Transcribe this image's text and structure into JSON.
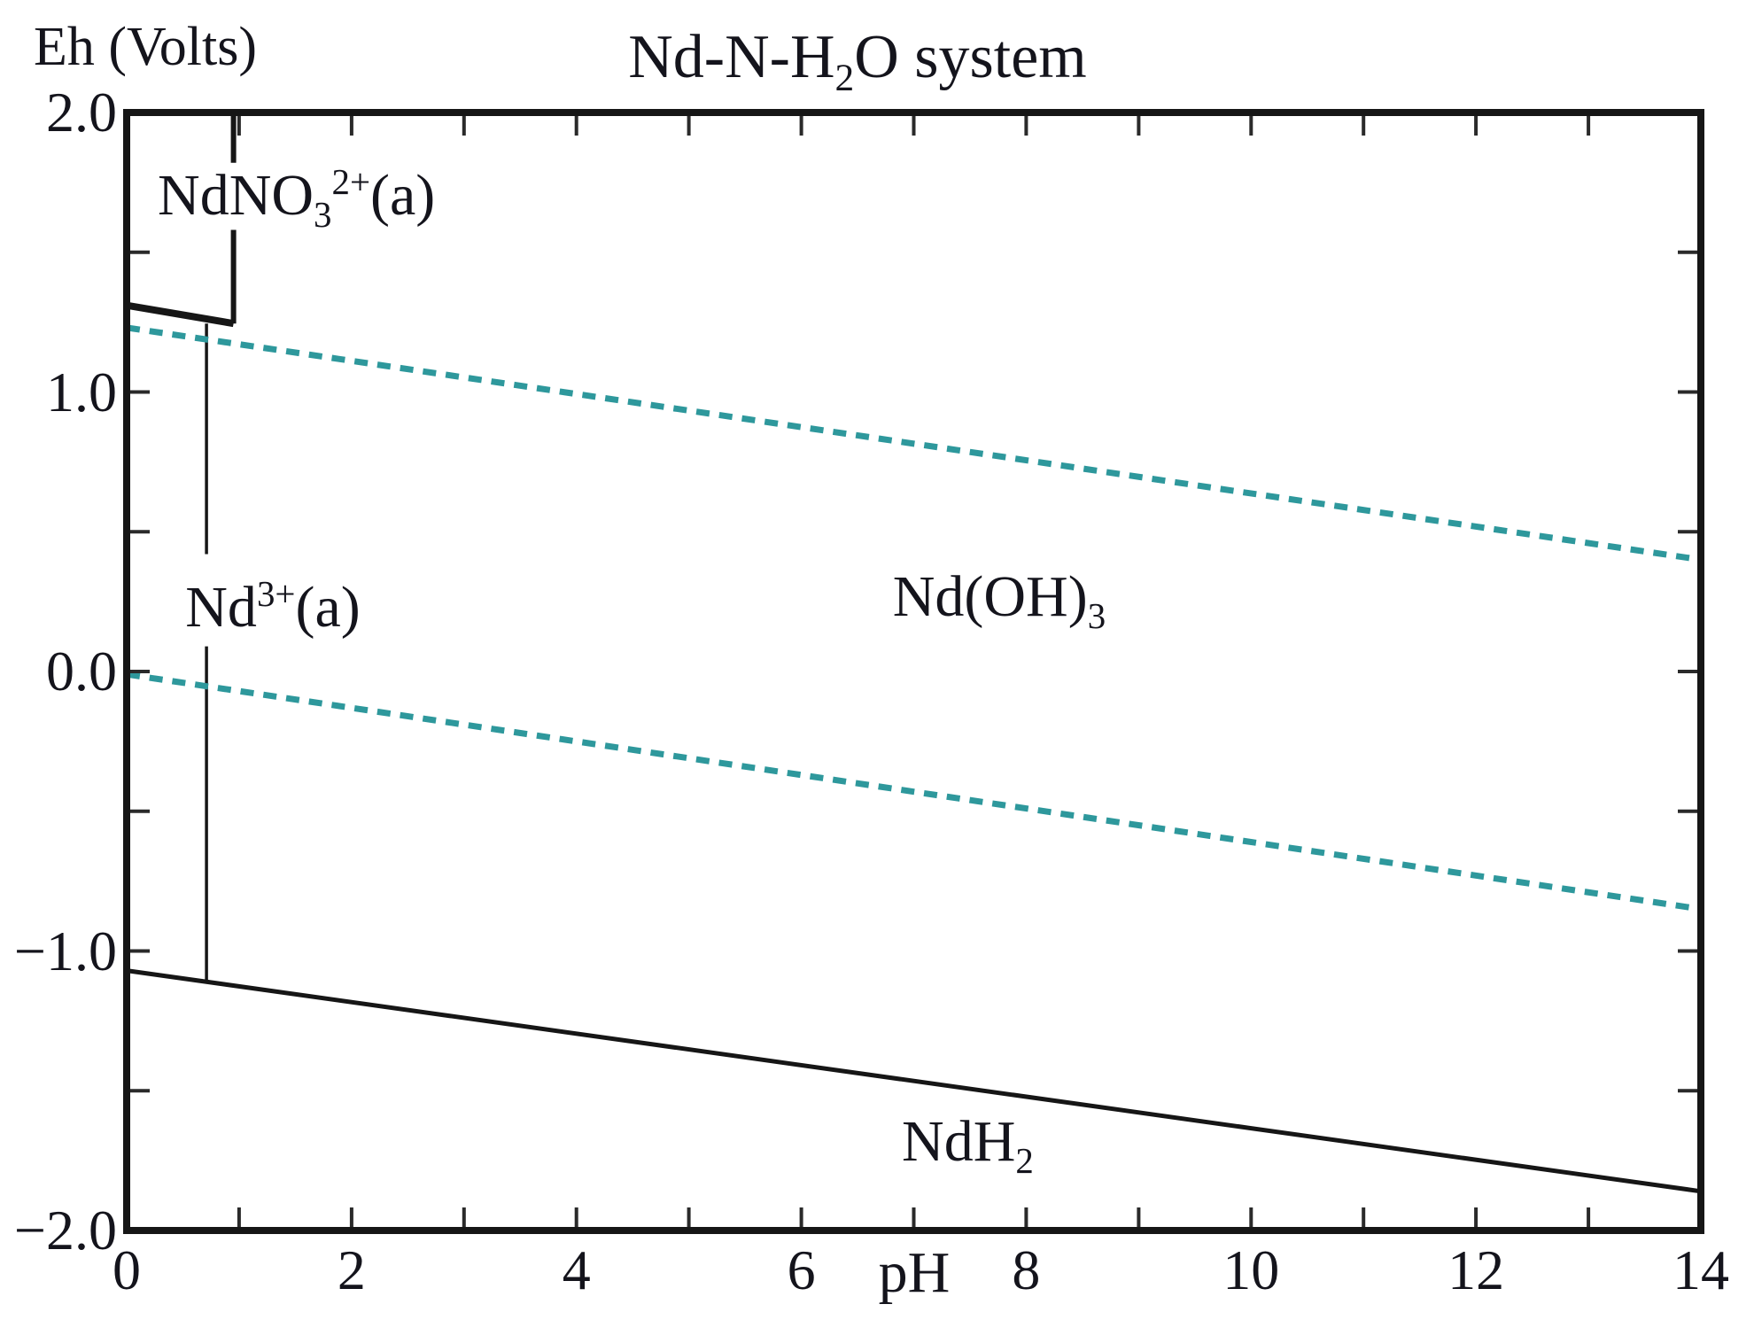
{
  "title": {
    "text": "Nd-N-H_2_O system"
  },
  "axes": {
    "y": {
      "label": "Eh (Volts)",
      "range": [
        -2,
        2
      ],
      "minor_tick_step": 0.5,
      "ticks": [
        {
          "value": 2,
          "label": "2.0"
        },
        {
          "value": 1,
          "label": "1.0"
        },
        {
          "value": 0,
          "label": "0.0"
        },
        {
          "value": -1,
          "label": "−1.0"
        },
        {
          "value": -2,
          "label": "−2.0"
        }
      ]
    },
    "x": {
      "label": "pH",
      "range": [
        0,
        14
      ],
      "minor_tick_step": 1,
      "ticks": [
        {
          "value": 0,
          "label": "0"
        },
        {
          "value": 2,
          "label": "2"
        },
        {
          "value": 4,
          "label": "4"
        },
        {
          "value": 6,
          "label": "6"
        },
        {
          "value": 8,
          "label": "8"
        },
        {
          "value": 10,
          "label": "10"
        },
        {
          "value": 12,
          "label": "12"
        },
        {
          "value": 14,
          "label": "14"
        }
      ]
    }
  },
  "colors": {
    "boundary": "#161616",
    "water_line": "#2e989c",
    "text": "#14141c",
    "background": "#ffffff",
    "tick": "#2a2a2a"
  },
  "chart_data": {
    "type": "line",
    "title": "Nd-N-H2O system (Pourbaix diagram)",
    "xlabel": "pH",
    "ylabel": "Eh (Volts)",
    "x_range": [
      0,
      14
    ],
    "y_range": [
      -2,
      2
    ],
    "grid": false,
    "regions": [
      {
        "label": "NdNO_3_^2+^(a)",
        "ph": 1.51,
        "eh": 1.69
      },
      {
        "label": "Nd^3+^(a)",
        "ph": 1.3,
        "eh": 0.23
      },
      {
        "label": "Nd(OH)_3_",
        "ph": 7.76,
        "eh": 0.25
      },
      {
        "label": "NdH_2_",
        "ph": 7.48,
        "eh": -1.7
      }
    ],
    "lines": [
      {
        "name": "NdNO3(2+)/Nd(3+) boundary",
        "style": "solid",
        "width": 8,
        "points": [
          [
            0,
            1.31
          ],
          [
            0.95,
            1.245
          ]
        ]
      },
      {
        "name": "NdNO3(2+)/Nd(OH)3 boundary (upper)",
        "style": "solid",
        "width": 6,
        "points": [
          [
            0.95,
            2.0
          ],
          [
            0.95,
            1.82
          ]
        ]
      },
      {
        "name": "NdNO3(2+)/Nd(OH)3 boundary (lower)",
        "style": "solid",
        "width": 6,
        "points": [
          [
            0.95,
            1.58
          ],
          [
            0.95,
            1.245
          ]
        ]
      },
      {
        "name": "Nd(3+)/Nd(OH)3 boundary (upper)",
        "style": "solid",
        "width": 3.5,
        "points": [
          [
            0.71,
            1.245
          ],
          [
            0.71,
            0.42
          ]
        ]
      },
      {
        "name": "Nd(3+)/Nd(OH)3 boundary (lower)",
        "style": "solid",
        "width": 3.5,
        "points": [
          [
            0.71,
            0.09
          ],
          [
            0.71,
            -1.11
          ]
        ]
      },
      {
        "name": "NdH2 boundary",
        "style": "solid",
        "width": 5,
        "points": [
          [
            0,
            -1.07
          ],
          [
            14,
            -1.86
          ]
        ]
      },
      {
        "name": "O2/H2O water stability line",
        "style": "dashed",
        "width": 7,
        "points": [
          [
            0,
            1.23
          ],
          [
            14,
            0.4
          ]
        ]
      },
      {
        "name": "H2O/H2 water stability line",
        "style": "dashed",
        "width": 7,
        "points": [
          [
            0,
            -0.01
          ],
          [
            14,
            -0.85
          ]
        ]
      }
    ]
  }
}
